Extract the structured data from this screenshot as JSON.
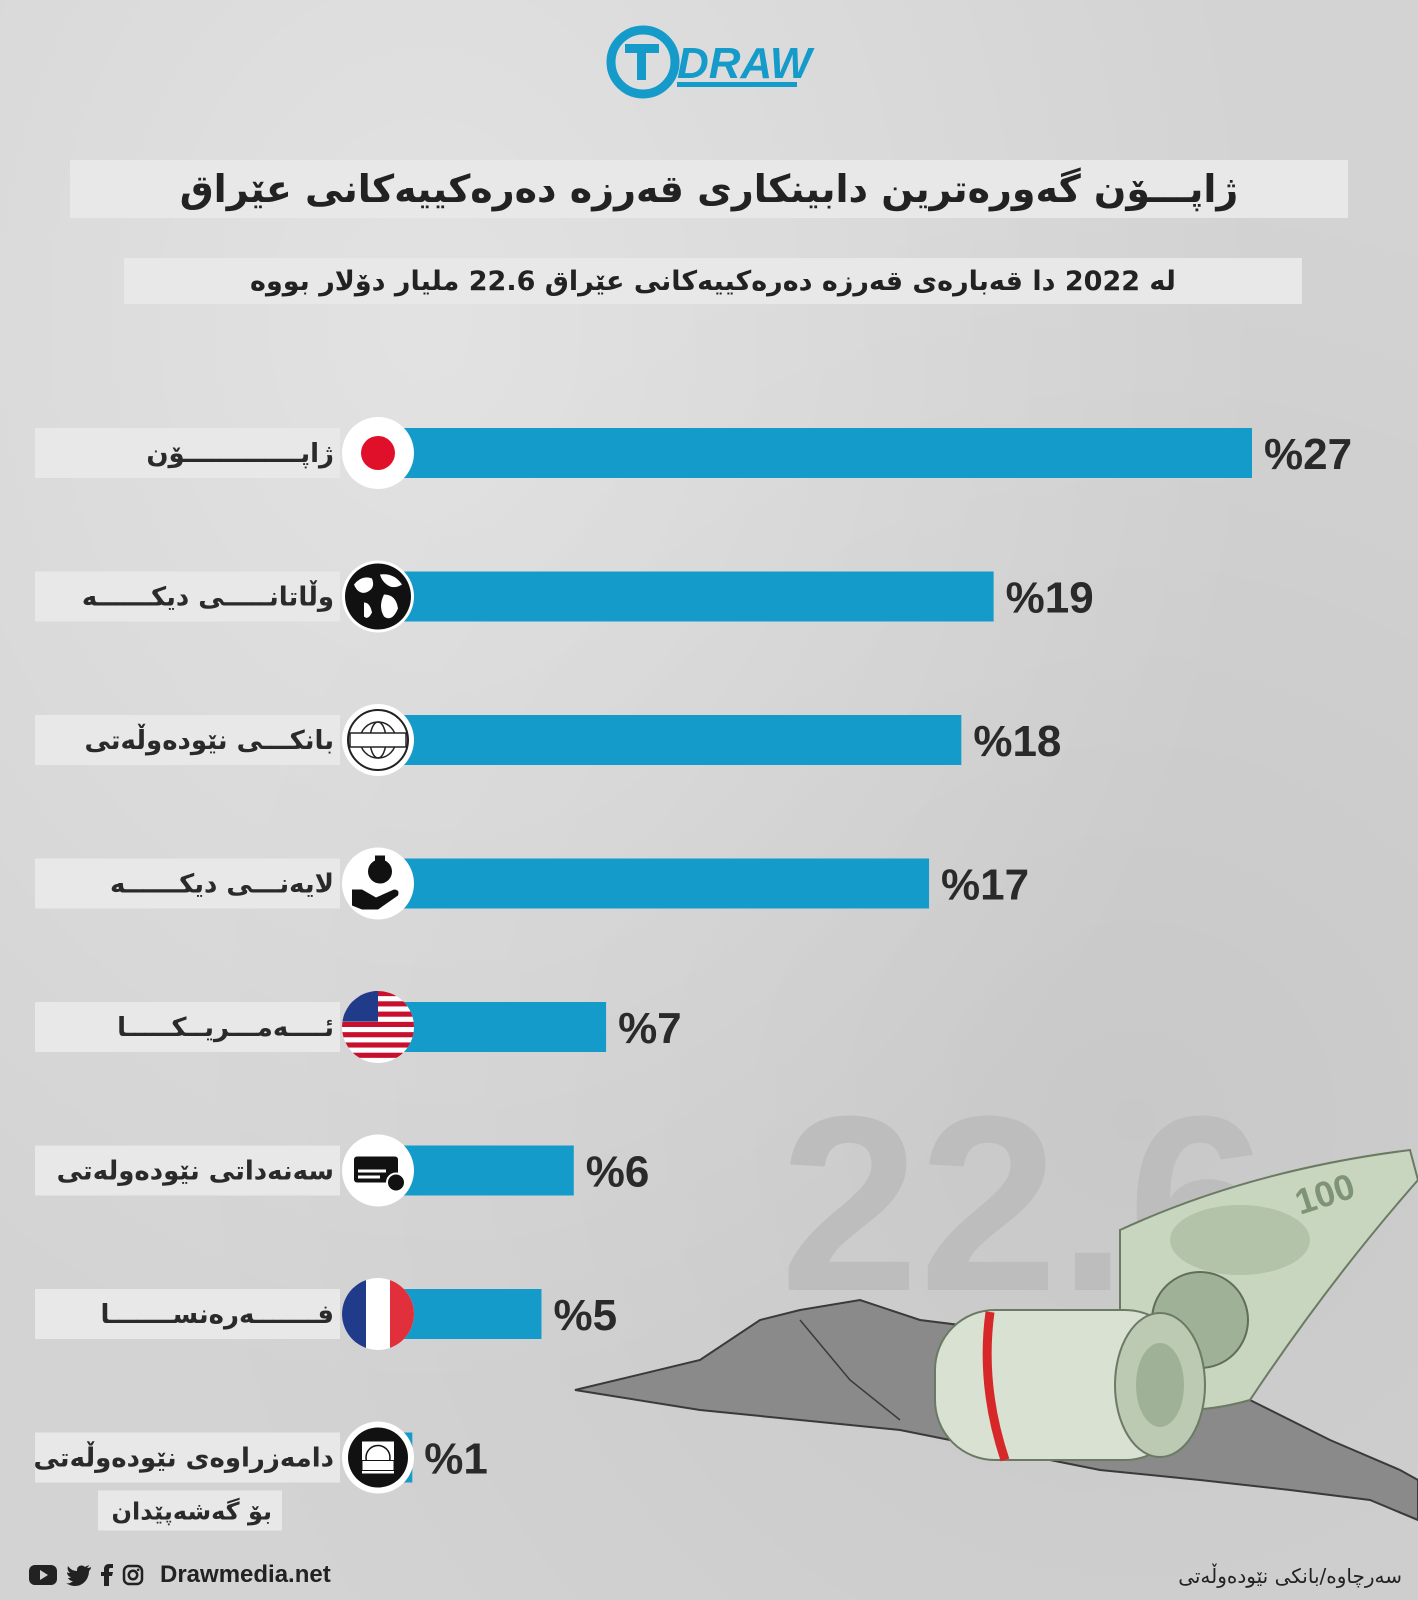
{
  "brand": {
    "logo_text": "DRAW",
    "accent_color": "#159bc9"
  },
  "header": {
    "title": "ژاپـــۆن گەورەترین دابینکاری قەرزە دەرەکییەکانی عێراق",
    "subtitle": "لە 2022 دا قەبارەی قەرزە دەرەکییەکانی عێراق 22.6 ملیار دۆلار بووە"
  },
  "chart_data": {
    "type": "bar",
    "orientation": "horizontal",
    "categories": [
      "ژاپـــــــــــــۆن",
      "وڵاتانـــــى دیكــــــه",
      "بانكـــى نێودەوڵەتی",
      "لایەنـــى دیكــــــه",
      "ئــــەمـــریــكـــــا",
      "سەنەداتی نێودەولەتی",
      "فـــــــەرەنســـــــا",
      "دامەزراوەی نێودەوڵەتی"
    ],
    "category_line2": [
      "",
      "",
      "",
      "",
      "",
      "",
      "",
      "بۆ گەشەپێدان"
    ],
    "values": [
      27,
      19,
      18,
      17,
      7,
      6,
      5,
      1
    ],
    "value_labels": [
      "%27",
      "%19",
      "%18",
      "%17",
      "%7",
      "%6",
      "%5",
      "%1"
    ],
    "icons": [
      "japan-flag-icon",
      "globe-icon",
      "world-bank-icon",
      "money-hand-icon",
      "usa-flag-icon",
      "bond-icon",
      "france-flag-icon",
      "ida-icon"
    ],
    "value_max": 27,
    "bar_color": "#159bc9",
    "watermark_text": "22.6"
  },
  "footer": {
    "site": "Drawmedia.net",
    "source": "سەرچاوە/بانكی نێودەوڵەتی",
    "social_icons": [
      "youtube-icon",
      "twitter-icon",
      "facebook-icon",
      "instagram-icon"
    ]
  }
}
